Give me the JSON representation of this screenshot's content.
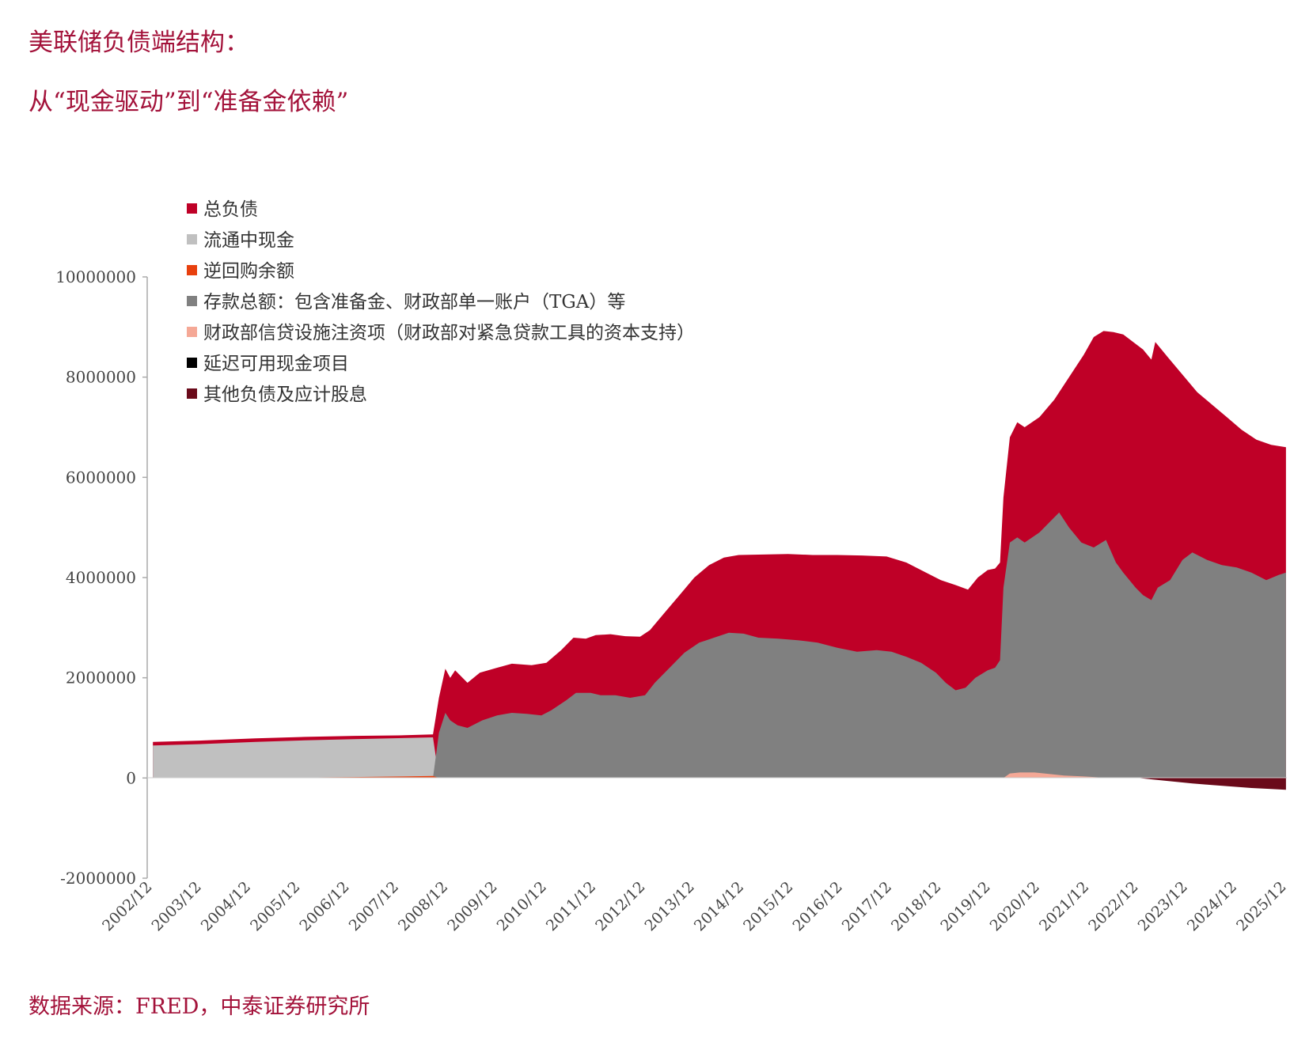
{
  "header": {
    "title_line1": "美联储负债端结构：",
    "title_line2": "从“现金驱动”到“准备金依赖”"
  },
  "footer": {
    "source": "数据来源：FRED，中泰证券研究所"
  },
  "colors": {
    "title": "#a3123a",
    "total": "#bf0027",
    "currency": "#c0c0c0",
    "reverse_repo": "#e8400e",
    "deposits": "#808080",
    "treasury_credit": "#f5a896",
    "deferred_cash": "#000000",
    "other": "#6a0a1a"
  },
  "chart_data": {
    "type": "area",
    "title": "",
    "xlabel": "",
    "ylabel": "",
    "ylim": [
      -2000000,
      10000000
    ],
    "yticks": [
      "10000000",
      "8000000",
      "6000000",
      "4000000",
      "2000000",
      "0",
      "-2000000"
    ],
    "ytick_values": [
      10000000,
      8000000,
      6000000,
      4000000,
      2000000,
      0,
      -2000000
    ],
    "x_tick_labels": [
      "2002/12",
      "2003/12",
      "2004/12",
      "2005/12",
      "2006/12",
      "2007/12",
      "2008/12",
      "2009/12",
      "2010/12",
      "2011/12",
      "2012/12",
      "2013/12",
      "2014/12",
      "2015/12",
      "2016/12",
      "2017/12",
      "2018/12",
      "2019/12",
      "2020/12",
      "2021/12",
      "2022/12",
      "2023/12",
      "2024/12",
      "2025/12"
    ],
    "x_tick_values": [
      2002.917,
      2003.917,
      2004.917,
      2005.917,
      2006.917,
      2007.917,
      2008.917,
      2009.917,
      2010.917,
      2011.917,
      2012.917,
      2013.917,
      2014.917,
      2015.917,
      2016.917,
      2017.917,
      2018.917,
      2019.917,
      2020.917,
      2021.917,
      2022.917,
      2023.917,
      2024.917,
      2025.917
    ],
    "xlim": [
      2002.917,
      2025.917
    ],
    "legend_position": "top-left",
    "series": [
      {
        "key": "total",
        "name": "总负债",
        "color": "#bf0027",
        "points": [
          [
            2002.92,
            720000
          ],
          [
            2004.0,
            750000
          ],
          [
            2005.0,
            790000
          ],
          [
            2006.0,
            820000
          ],
          [
            2007.0,
            840000
          ],
          [
            2007.9,
            850000
          ],
          [
            2008.6,
            870000
          ],
          [
            2008.72,
            1600000
          ],
          [
            2008.85,
            2180000
          ],
          [
            2008.95,
            2000000
          ],
          [
            2009.05,
            2150000
          ],
          [
            2009.3,
            1900000
          ],
          [
            2009.55,
            2100000
          ],
          [
            2009.9,
            2200000
          ],
          [
            2010.2,
            2280000
          ],
          [
            2010.6,
            2250000
          ],
          [
            2010.9,
            2300000
          ],
          [
            2011.2,
            2550000
          ],
          [
            2011.45,
            2800000
          ],
          [
            2011.7,
            2780000
          ],
          [
            2011.9,
            2850000
          ],
          [
            2012.2,
            2870000
          ],
          [
            2012.5,
            2830000
          ],
          [
            2012.8,
            2820000
          ],
          [
            2013.0,
            2950000
          ],
          [
            2013.3,
            3300000
          ],
          [
            2013.6,
            3650000
          ],
          [
            2013.9,
            4000000
          ],
          [
            2014.2,
            4250000
          ],
          [
            2014.5,
            4400000
          ],
          [
            2014.8,
            4450000
          ],
          [
            2015.3,
            4460000
          ],
          [
            2015.8,
            4470000
          ],
          [
            2016.3,
            4450000
          ],
          [
            2016.8,
            4450000
          ],
          [
            2017.3,
            4440000
          ],
          [
            2017.8,
            4420000
          ],
          [
            2018.2,
            4300000
          ],
          [
            2018.6,
            4100000
          ],
          [
            2018.9,
            3950000
          ],
          [
            2019.2,
            3850000
          ],
          [
            2019.45,
            3760000
          ],
          [
            2019.65,
            4000000
          ],
          [
            2019.85,
            4150000
          ],
          [
            2020.0,
            4180000
          ],
          [
            2020.1,
            4300000
          ],
          [
            2020.17,
            5600000
          ],
          [
            2020.3,
            6800000
          ],
          [
            2020.45,
            7100000
          ],
          [
            2020.6,
            7000000
          ],
          [
            2020.9,
            7200000
          ],
          [
            2021.2,
            7550000
          ],
          [
            2021.5,
            8000000
          ],
          [
            2021.8,
            8450000
          ],
          [
            2022.0,
            8800000
          ],
          [
            2022.2,
            8920000
          ],
          [
            2022.4,
            8900000
          ],
          [
            2022.6,
            8850000
          ],
          [
            2022.8,
            8700000
          ],
          [
            2023.0,
            8550000
          ],
          [
            2023.17,
            8350000
          ],
          [
            2023.25,
            8700000
          ],
          [
            2023.5,
            8400000
          ],
          [
            2023.8,
            8050000
          ],
          [
            2024.1,
            7700000
          ],
          [
            2024.4,
            7450000
          ],
          [
            2024.7,
            7200000
          ],
          [
            2025.0,
            6950000
          ],
          [
            2025.3,
            6750000
          ],
          [
            2025.6,
            6650000
          ],
          [
            2025.9,
            6600000
          ]
        ]
      },
      {
        "key": "deposits",
        "name": "存款总额：包含准备金、财政部单一账户（TGA）等",
        "color": "#808080",
        "points": [
          [
            2002.92,
            0
          ],
          [
            2008.6,
            0
          ],
          [
            2008.72,
            900000
          ],
          [
            2008.85,
            1300000
          ],
          [
            2008.95,
            1150000
          ],
          [
            2009.1,
            1050000
          ],
          [
            2009.3,
            1000000
          ],
          [
            2009.6,
            1150000
          ],
          [
            2009.9,
            1250000
          ],
          [
            2010.2,
            1300000
          ],
          [
            2010.5,
            1280000
          ],
          [
            2010.8,
            1250000
          ],
          [
            2011.0,
            1350000
          ],
          [
            2011.3,
            1550000
          ],
          [
            2011.5,
            1700000
          ],
          [
            2011.8,
            1700000
          ],
          [
            2012.0,
            1650000
          ],
          [
            2012.3,
            1650000
          ],
          [
            2012.6,
            1600000
          ],
          [
            2012.9,
            1650000
          ],
          [
            2013.1,
            1900000
          ],
          [
            2013.4,
            2200000
          ],
          [
            2013.7,
            2500000
          ],
          [
            2014.0,
            2700000
          ],
          [
            2014.3,
            2800000
          ],
          [
            2014.6,
            2900000
          ],
          [
            2014.9,
            2880000
          ],
          [
            2015.2,
            2800000
          ],
          [
            2015.6,
            2780000
          ],
          [
            2016.0,
            2750000
          ],
          [
            2016.4,
            2700000
          ],
          [
            2016.8,
            2600000
          ],
          [
            2017.2,
            2520000
          ],
          [
            2017.6,
            2550000
          ],
          [
            2017.9,
            2520000
          ],
          [
            2018.2,
            2420000
          ],
          [
            2018.5,
            2300000
          ],
          [
            2018.8,
            2100000
          ],
          [
            2019.0,
            1900000
          ],
          [
            2019.2,
            1750000
          ],
          [
            2019.4,
            1800000
          ],
          [
            2019.6,
            2000000
          ],
          [
            2019.85,
            2150000
          ],
          [
            2020.0,
            2200000
          ],
          [
            2020.1,
            2350000
          ],
          [
            2020.17,
            3800000
          ],
          [
            2020.3,
            4700000
          ],
          [
            2020.45,
            4800000
          ],
          [
            2020.6,
            4700000
          ],
          [
            2020.9,
            4900000
          ],
          [
            2021.1,
            5100000
          ],
          [
            2021.3,
            5300000
          ],
          [
            2021.5,
            5000000
          ],
          [
            2021.75,
            4700000
          ],
          [
            2022.0,
            4600000
          ],
          [
            2022.25,
            4750000
          ],
          [
            2022.45,
            4300000
          ],
          [
            2022.6,
            4100000
          ],
          [
            2022.85,
            3800000
          ],
          [
            2023.0,
            3650000
          ],
          [
            2023.17,
            3550000
          ],
          [
            2023.3,
            3800000
          ],
          [
            2023.55,
            3950000
          ],
          [
            2023.8,
            4350000
          ],
          [
            2024.0,
            4500000
          ],
          [
            2024.3,
            4350000
          ],
          [
            2024.6,
            4250000
          ],
          [
            2024.9,
            4200000
          ],
          [
            2025.2,
            4100000
          ],
          [
            2025.5,
            3950000
          ],
          [
            2025.75,
            4050000
          ],
          [
            2025.9,
            4100000
          ]
        ]
      },
      {
        "key": "currency",
        "name": "流通中现金",
        "color": "#c0c0c0",
        "points": [
          [
            2002.92,
            650000
          ],
          [
            2004.0,
            680000
          ],
          [
            2005.0,
            720000
          ],
          [
            2006.0,
            750000
          ],
          [
            2007.0,
            775000
          ],
          [
            2007.9,
            795000
          ],
          [
            2008.6,
            810000
          ],
          [
            2008.72,
            0
          ]
        ]
      },
      {
        "key": "reverse_repo",
        "name": "逆回购余额",
        "color": "#e8400e",
        "points": [
          [
            2005.0,
            5000
          ],
          [
            2006.0,
            12000
          ],
          [
            2007.0,
            20000
          ],
          [
            2008.0,
            30000
          ],
          [
            2008.6,
            40000
          ],
          [
            2008.72,
            0
          ]
        ]
      },
      {
        "key": "treasury_credit",
        "name": "财政部信贷设施注资项（财政部对紧急贷款工具的资本支持）",
        "color": "#f5a896",
        "points": [
          [
            2020.17,
            0
          ],
          [
            2020.3,
            90000
          ],
          [
            2020.5,
            110000
          ],
          [
            2020.8,
            110000
          ],
          [
            2021.0,
            90000
          ],
          [
            2021.4,
            50000
          ],
          [
            2021.8,
            30000
          ],
          [
            2022.0,
            20000
          ],
          [
            2022.3,
            0
          ]
        ]
      },
      {
        "key": "deferred_cash",
        "name": "延迟可用现金项目",
        "color": "#000000",
        "points": []
      },
      {
        "key": "other",
        "name": "其他负债及应计股息",
        "color": "#6a0a1a",
        "points": [
          [
            2022.9,
            0
          ],
          [
            2023.2,
            -30000
          ],
          [
            2023.6,
            -70000
          ],
          [
            2024.0,
            -110000
          ],
          [
            2024.4,
            -140000
          ],
          [
            2024.8,
            -170000
          ],
          [
            2025.2,
            -200000
          ],
          [
            2025.6,
            -220000
          ],
          [
            2025.9,
            -235000
          ]
        ]
      }
    ]
  }
}
